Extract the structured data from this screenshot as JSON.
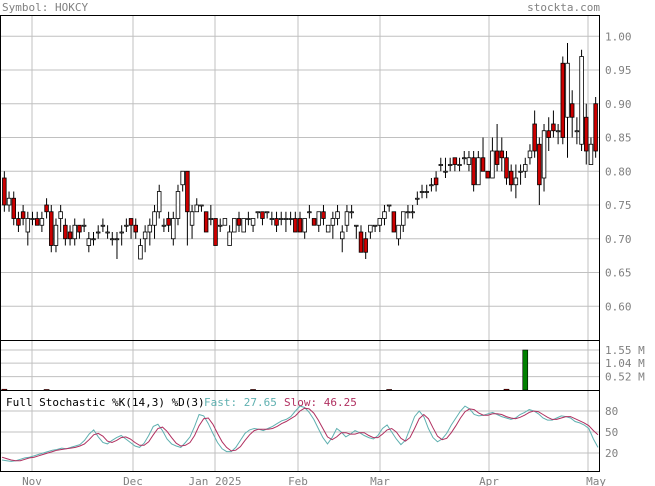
{
  "header": {
    "symbol_label": "Symbol: HOKCY",
    "site_label": "stockta.com"
  },
  "colors": {
    "up": "#ffffff",
    "down": "#cc0000",
    "volume": "#008000",
    "grid": "#c0c0c0",
    "fast_line": "#5fb0b0",
    "slow_line": "#b03060",
    "label": "#808080"
  },
  "chart_data": [
    {
      "type": "candlestick",
      "title": "",
      "y_ticks": [
        "1.00",
        "0.95",
        "0.90",
        "0.85",
        "0.80",
        "0.75",
        "0.70",
        "0.65",
        "0.60"
      ],
      "ylim": [
        0.55,
        1.03
      ],
      "x_labels": [
        "Nov",
        "Dec",
        "Jan 2025",
        "Feb",
        "Mar",
        "Apr",
        "May"
      ],
      "ohlc": [
        [
          0.79,
          0.8,
          0.74,
          0.75
        ],
        [
          0.75,
          0.77,
          0.74,
          0.76
        ],
        [
          0.76,
          0.77,
          0.72,
          0.73
        ],
        [
          0.73,
          0.74,
          0.71,
          0.72
        ],
        [
          0.74,
          0.75,
          0.72,
          0.73
        ],
        [
          0.71,
          0.74,
          0.69,
          0.73
        ],
        [
          0.73,
          0.74,
          0.72,
          0.73
        ],
        [
          0.73,
          0.74,
          0.72,
          0.72
        ],
        [
          0.72,
          0.74,
          0.71,
          0.73
        ],
        [
          0.75,
          0.76,
          0.73,
          0.74
        ],
        [
          0.74,
          0.75,
          0.68,
          0.69
        ],
        [
          0.69,
          0.73,
          0.68,
          0.72
        ],
        [
          0.73,
          0.75,
          0.71,
          0.74
        ],
        [
          0.72,
          0.73,
          0.69,
          0.7
        ],
        [
          0.71,
          0.72,
          0.69,
          0.7
        ],
        [
          0.7,
          0.73,
          0.69,
          0.72
        ],
        [
          0.72,
          0.72,
          0.7,
          0.71
        ],
        [
          0.72,
          0.73,
          0.71,
          0.72
        ],
        [
          0.69,
          0.71,
          0.68,
          0.7
        ],
        [
          0.7,
          0.71,
          0.69,
          0.7
        ],
        [
          0.71,
          0.72,
          0.7,
          0.71
        ],
        [
          0.72,
          0.73,
          0.71,
          0.72
        ],
        [
          0.71,
          0.72,
          0.7,
          0.71
        ],
        [
          0.7,
          0.71,
          0.69,
          0.7
        ],
        [
          0.7,
          0.71,
          0.67,
          0.7
        ],
        [
          0.71,
          0.72,
          0.69,
          0.71
        ],
        [
          0.72,
          0.73,
          0.71,
          0.72
        ],
        [
          0.73,
          0.73,
          0.7,
          0.72
        ],
        [
          0.72,
          0.73,
          0.7,
          0.71
        ],
        [
          0.67,
          0.7,
          0.67,
          0.69
        ],
        [
          0.7,
          0.72,
          0.68,
          0.71
        ],
        [
          0.71,
          0.73,
          0.69,
          0.72
        ],
        [
          0.72,
          0.75,
          0.7,
          0.74
        ],
        [
          0.74,
          0.78,
          0.73,
          0.77
        ],
        [
          0.72,
          0.73,
          0.71,
          0.72
        ],
        [
          0.73,
          0.74,
          0.71,
          0.72
        ],
        [
          0.7,
          0.74,
          0.69,
          0.73
        ],
        [
          0.73,
          0.78,
          0.72,
          0.77
        ],
        [
          0.78,
          0.8,
          0.77,
          0.8
        ],
        [
          0.8,
          0.8,
          0.69,
          0.74
        ],
        [
          0.72,
          0.75,
          0.7,
          0.74
        ],
        [
          0.74,
          0.76,
          0.74,
          0.75
        ],
        [
          0.75,
          0.75,
          0.74,
          0.75
        ],
        [
          0.74,
          0.74,
          0.71,
          0.71
        ],
        [
          0.73,
          0.75,
          0.72,
          0.73
        ],
        [
          0.73,
          0.73,
          0.69,
          0.69
        ],
        [
          0.72,
          0.73,
          0.71,
          0.72
        ],
        [
          0.72,
          0.73,
          0.72,
          0.73
        ],
        [
          0.69,
          0.72,
          0.69,
          0.71
        ],
        [
          0.71,
          0.73,
          0.71,
          0.73
        ],
        [
          0.73,
          0.74,
          0.71,
          0.72
        ],
        [
          0.71,
          0.73,
          0.71,
          0.73
        ],
        [
          0.73,
          0.74,
          0.72,
          0.73
        ],
        [
          0.72,
          0.73,
          0.71,
          0.73
        ],
        [
          0.74,
          0.74,
          0.73,
          0.74
        ],
        [
          0.74,
          0.74,
          0.72,
          0.73
        ],
        [
          0.74,
          0.74,
          0.73,
          0.74
        ],
        [
          0.73,
          0.74,
          0.72,
          0.73
        ],
        [
          0.73,
          0.74,
          0.71,
          0.72
        ],
        [
          0.73,
          0.74,
          0.72,
          0.73
        ],
        [
          0.73,
          0.74,
          0.71,
          0.73
        ],
        [
          0.73,
          0.74,
          0.72,
          0.73
        ],
        [
          0.73,
          0.74,
          0.71,
          0.71
        ],
        [
          0.73,
          0.74,
          0.71,
          0.71
        ],
        [
          0.71,
          0.73,
          0.7,
          0.73
        ],
        [
          0.74,
          0.75,
          0.73,
          0.74
        ],
        [
          0.73,
          0.73,
          0.72,
          0.72
        ],
        [
          0.72,
          0.74,
          0.71,
          0.74
        ],
        [
          0.74,
          0.75,
          0.72,
          0.73
        ],
        [
          0.71,
          0.72,
          0.71,
          0.72
        ],
        [
          0.72,
          0.74,
          0.7,
          0.73
        ],
        [
          0.73,
          0.75,
          0.72,
          0.74
        ],
        [
          0.7,
          0.72,
          0.68,
          0.71
        ],
        [
          0.72,
          0.75,
          0.71,
          0.74
        ],
        [
          0.74,
          0.75,
          0.73,
          0.74
        ],
        [
          0.72,
          0.72,
          0.7,
          0.72
        ],
        [
          0.71,
          0.72,
          0.68,
          0.68
        ],
        [
          0.7,
          0.71,
          0.67,
          0.68
        ],
        [
          0.71,
          0.72,
          0.7,
          0.72
        ],
        [
          0.72,
          0.72,
          0.71,
          0.72
        ],
        [
          0.72,
          0.73,
          0.71,
          0.73
        ],
        [
          0.73,
          0.75,
          0.72,
          0.74
        ],
        [
          0.75,
          0.75,
          0.74,
          0.75
        ],
        [
          0.74,
          0.74,
          0.71,
          0.71
        ],
        [
          0.7,
          0.72,
          0.69,
          0.72
        ],
        [
          0.72,
          0.74,
          0.71,
          0.74
        ],
        [
          0.74,
          0.75,
          0.73,
          0.74
        ],
        [
          0.74,
          0.75,
          0.73,
          0.74
        ],
        [
          0.76,
          0.77,
          0.75,
          0.76
        ],
        [
          0.77,
          0.78,
          0.76,
          0.77
        ],
        [
          0.77,
          0.78,
          0.76,
          0.77
        ],
        [
          0.78,
          0.79,
          0.77,
          0.78
        ],
        [
          0.79,
          0.8,
          0.77,
          0.78
        ],
        [
          0.81,
          0.82,
          0.8,
          0.81
        ],
        [
          0.8,
          0.82,
          0.79,
          0.8
        ],
        [
          0.81,
          0.82,
          0.8,
          0.81
        ],
        [
          0.82,
          0.82,
          0.8,
          0.81
        ],
        [
          0.81,
          0.82,
          0.8,
          0.81
        ],
        [
          0.82,
          0.83,
          0.81,
          0.82
        ],
        [
          0.81,
          0.83,
          0.8,
          0.82
        ],
        [
          0.82,
          0.83,
          0.77,
          0.78
        ],
        [
          0.78,
          0.83,
          0.78,
          0.82
        ],
        [
          0.82,
          0.85,
          0.8,
          0.8
        ],
        [
          0.8,
          0.8,
          0.79,
          0.79
        ],
        [
          0.79,
          0.85,
          0.79,
          0.83
        ],
        [
          0.83,
          0.87,
          0.8,
          0.81
        ],
        [
          0.83,
          0.85,
          0.8,
          0.82
        ],
        [
          0.82,
          0.83,
          0.78,
          0.79
        ],
        [
          0.8,
          0.81,
          0.77,
          0.78
        ],
        [
          0.78,
          0.81,
          0.76,
          0.79
        ],
        [
          0.8,
          0.81,
          0.78,
          0.8
        ],
        [
          0.8,
          0.82,
          0.79,
          0.81
        ],
        [
          0.82,
          0.84,
          0.81,
          0.83
        ],
        [
          0.87,
          0.89,
          0.82,
          0.83
        ],
        [
          0.84,
          0.85,
          0.75,
          0.78
        ],
        [
          0.79,
          0.87,
          0.77,
          0.86
        ],
        [
          0.86,
          0.88,
          0.83,
          0.85
        ],
        [
          0.87,
          0.89,
          0.85,
          0.86
        ],
        [
          0.86,
          0.87,
          0.84,
          0.86
        ],
        [
          0.96,
          0.97,
          0.84,
          0.85
        ],
        [
          0.88,
          0.99,
          0.82,
          0.96
        ],
        [
          0.9,
          0.92,
          0.85,
          0.88
        ],
        [
          0.86,
          0.88,
          0.84,
          0.86
        ],
        [
          0.84,
          0.98,
          0.83,
          0.97
        ],
        [
          0.88,
          0.9,
          0.81,
          0.83
        ],
        [
          0.81,
          0.85,
          0.81,
          0.84
        ],
        [
          0.9,
          0.91,
          0.82,
          0.83
        ]
      ]
    },
    {
      "type": "bar",
      "series_name": "volume",
      "y_ticks": [
        "1.55 M",
        "1.04 M",
        "0.52 M"
      ],
      "ylim": [
        0,
        1.9
      ],
      "values": [
        0.03,
        0,
        0,
        0,
        0,
        0,
        0,
        0,
        0,
        0.02,
        0,
        0,
        0,
        0,
        0,
        0,
        0,
        0,
        0,
        0,
        0,
        0,
        0,
        0,
        0,
        0,
        0,
        0,
        0,
        0,
        0,
        0,
        0,
        0,
        0,
        0,
        0,
        0,
        0,
        0,
        0,
        0,
        0,
        0,
        0,
        0,
        0,
        0,
        0,
        0,
        0,
        0,
        0,
        0.02,
        0,
        0,
        0,
        0,
        0,
        0,
        0,
        0,
        0,
        0,
        0,
        0,
        0,
        0,
        0,
        0,
        0,
        0,
        0,
        0,
        0,
        0,
        0,
        0,
        0,
        0,
        0,
        0,
        0.02,
        0,
        0,
        0,
        0,
        0,
        0,
        0,
        0,
        0,
        0,
        0,
        0,
        0,
        0,
        0,
        0,
        0,
        0,
        0,
        0,
        0,
        0,
        0,
        0,
        0.03,
        0,
        0,
        0,
        1.55,
        0,
        0,
        0,
        0,
        0,
        0,
        0,
        0,
        0,
        0,
        0,
        0,
        0,
        0,
        0,
        0
      ]
    },
    {
      "type": "line",
      "title": "Full Stochastic %K(14,3) %D(3)",
      "fast_label": "Fast: 27.65",
      "slow_label": "Slow: 46.25",
      "y_ticks": [
        "80",
        "50",
        "20"
      ],
      "ylim": [
        0,
        100
      ],
      "series": [
        {
          "name": "Fast",
          "values": [
            10,
            9,
            8,
            9,
            11,
            13,
            14,
            16,
            18,
            20,
            22,
            24,
            25,
            27,
            26,
            28,
            30,
            32,
            38,
            47,
            53,
            43,
            35,
            33,
            38,
            42,
            45,
            40,
            35,
            30,
            28,
            34,
            45,
            58,
            61,
            52,
            40,
            33,
            30,
            28,
            35,
            43,
            58,
            75,
            73,
            62,
            48,
            35,
            26,
            22,
            22,
            28,
            38,
            48,
            53,
            55,
            54,
            52,
            55,
            58,
            62,
            66,
            68,
            72,
            80,
            87,
            85,
            78,
            68,
            55,
            42,
            33,
            42,
            55,
            50,
            43,
            47,
            52,
            49,
            45,
            42,
            40,
            45,
            55,
            60,
            50,
            40,
            32,
            38,
            55,
            72,
            80,
            72,
            55,
            42,
            36,
            40,
            48,
            60,
            70,
            80,
            87,
            83,
            75,
            73,
            74,
            76,
            78,
            75,
            72,
            70,
            68,
            70,
            75,
            78,
            82,
            80,
            76,
            70,
            67,
            67,
            70,
            73,
            72,
            70,
            65,
            63,
            60,
            55,
            40,
            28
          ]
        },
        {
          "name": "Slow",
          "values": [
            14,
            12,
            10,
            9,
            9,
            11,
            13,
            14,
            16,
            18,
            20,
            22,
            24,
            25,
            26,
            27,
            28,
            30,
            33,
            39,
            46,
            48,
            44,
            37,
            35,
            38,
            42,
            43,
            40,
            35,
            31,
            31,
            36,
            46,
            55,
            57,
            51,
            42,
            34,
            30,
            31,
            35,
            45,
            59,
            69,
            70,
            61,
            48,
            36,
            28,
            23,
            24,
            29,
            38,
            46,
            52,
            54,
            54,
            54,
            55,
            58,
            62,
            65,
            69,
            73,
            80,
            84,
            83,
            77,
            67,
            55,
            43,
            39,
            43,
            49,
            49,
            47,
            47,
            49,
            49,
            45,
            42,
            42,
            47,
            53,
            55,
            50,
            41,
            37,
            42,
            55,
            69,
            75,
            69,
            56,
            44,
            39,
            41,
            49,
            59,
            70,
            79,
            83,
            82,
            77,
            74,
            74,
            76,
            76,
            75,
            72,
            70,
            69,
            71,
            74,
            78,
            80,
            79,
            75,
            71,
            68,
            68,
            70,
            72,
            72,
            69,
            66,
            63,
            59,
            52,
            46
          ]
        }
      ]
    }
  ]
}
